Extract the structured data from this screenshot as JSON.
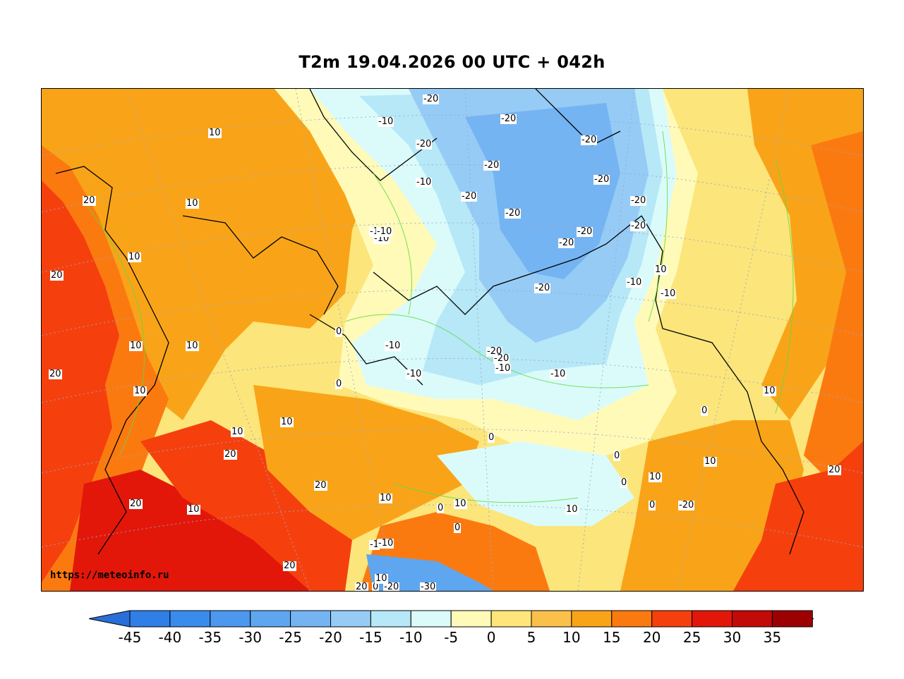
{
  "title": "T2m 19.04.2026 00 UTC + 042h",
  "watermark": "https://meteoinfo.ru",
  "colorbar": {
    "bins": [
      {
        "label": "-45",
        "color": "#2f7fe6"
      },
      {
        "label": "-40",
        "color": "#3a8cec"
      },
      {
        "label": "-35",
        "color": "#4b98ee"
      },
      {
        "label": "-30",
        "color": "#5ea6f0"
      },
      {
        "label": "-25",
        "color": "#75b4f2"
      },
      {
        "label": "-20",
        "color": "#96cbf6"
      },
      {
        "label": "-15",
        "color": "#b6e8f7"
      },
      {
        "label": "-10",
        "color": "#dbfbfb"
      },
      {
        "label": "-5",
        "color": "#fffab8"
      },
      {
        "label": "0",
        "color": "#ffe57a"
      },
      {
        "label": "5",
        "color": "#fbc04a"
      },
      {
        "label": "10",
        "color": "#f9a418"
      },
      {
        "label": "15",
        "color": "#fb7a10"
      },
      {
        "label": "20",
        "color": "#f5400e"
      },
      {
        "label": "25",
        "color": "#e2170a"
      },
      {
        "label": "30",
        "color": "#c20a08"
      },
      {
        "label": "35",
        "color": "#9c0000"
      }
    ],
    "low_arrow_color": "#2a6fd8",
    "high_arrow_color": "#9c0000"
  },
  "map": {
    "contour_labels": [
      "-20",
      "-10",
      "-20",
      "-20",
      "-20",
      "-10",
      "-20",
      "-20",
      "-20",
      "-20",
      "-20",
      "-20",
      "-10",
      "-20",
      "-10",
      "-20",
      "-10",
      "10",
      "20",
      "10",
      "10",
      "20",
      "10",
      "10",
      "20",
      "10",
      "0",
      "-10",
      "-10",
      "-20",
      "-10",
      "-10",
      "0",
      "10",
      "0",
      "10",
      "20",
      "20",
      "10",
      "20",
      "20",
      "10",
      "0",
      "0",
      "-1",
      "-10",
      "0",
      "10",
      "20",
      "-20",
      "0",
      "-30",
      "10",
      "0",
      "0",
      "10",
      "20",
      "10",
      "10",
      "0",
      "10",
      "-10",
      "-20",
      "-20",
      "-10",
      "10",
      "-20"
    ]
  }
}
